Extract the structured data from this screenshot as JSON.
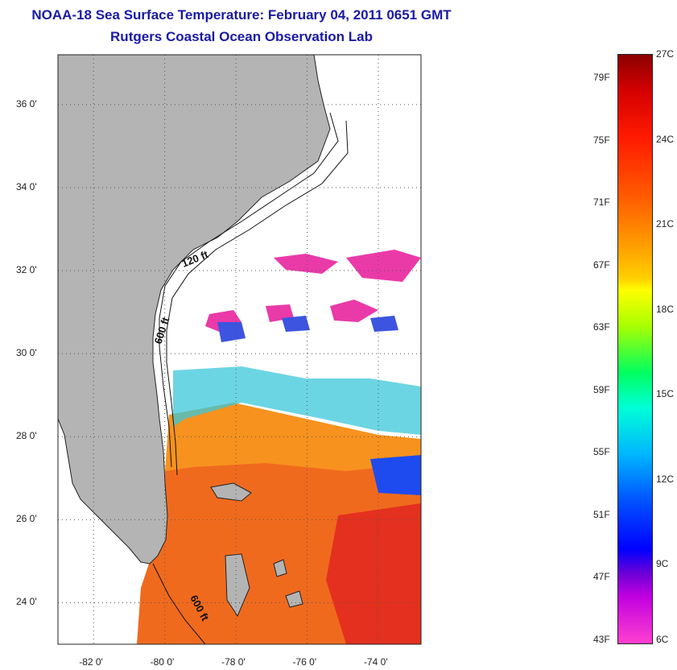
{
  "header": {
    "title": "NOAA-18 Sea Surface Temperature:  February 04, 2011 0651 GMT",
    "subtitle": "Rutgers Coastal Ocean Observation Lab"
  },
  "map": {
    "lon_range": [
      -83,
      -72.8
    ],
    "lat_range": [
      23,
      37.2
    ],
    "lat_ticks": [
      {
        "value": 36,
        "label": "36 0'"
      },
      {
        "value": 34,
        "label": "34 0'"
      },
      {
        "value": 32,
        "label": "32 0'"
      },
      {
        "value": 30,
        "label": "30 0'"
      },
      {
        "value": 28,
        "label": "28 0'"
      },
      {
        "value": 26,
        "label": "26 0'"
      },
      {
        "value": 24,
        "label": "24 0'"
      }
    ],
    "lon_ticks": [
      {
        "value": -82,
        "label": "-82 0'"
      },
      {
        "value": -80,
        "label": "-80 0'"
      },
      {
        "value": -78,
        "label": "-78 0'"
      },
      {
        "value": -76,
        "label": "-76 0'"
      },
      {
        "value": -74,
        "label": "-74 0'"
      }
    ],
    "contour_labels": [
      "120 ft",
      "600 ft",
      "600 ft"
    ],
    "colors": {
      "land": "#b4b4b4",
      "grid": "#555555"
    }
  },
  "colorbar": {
    "fahrenheit": [
      "79F",
      "75F",
      "71F",
      "67F",
      "63F",
      "59F",
      "55F",
      "51F",
      "47F",
      "43F"
    ],
    "celsius": [
      "27C",
      "24C",
      "21C",
      "18C",
      "15C",
      "12C",
      "9C",
      "6C"
    ],
    "range_c": [
      6,
      27
    ]
  }
}
